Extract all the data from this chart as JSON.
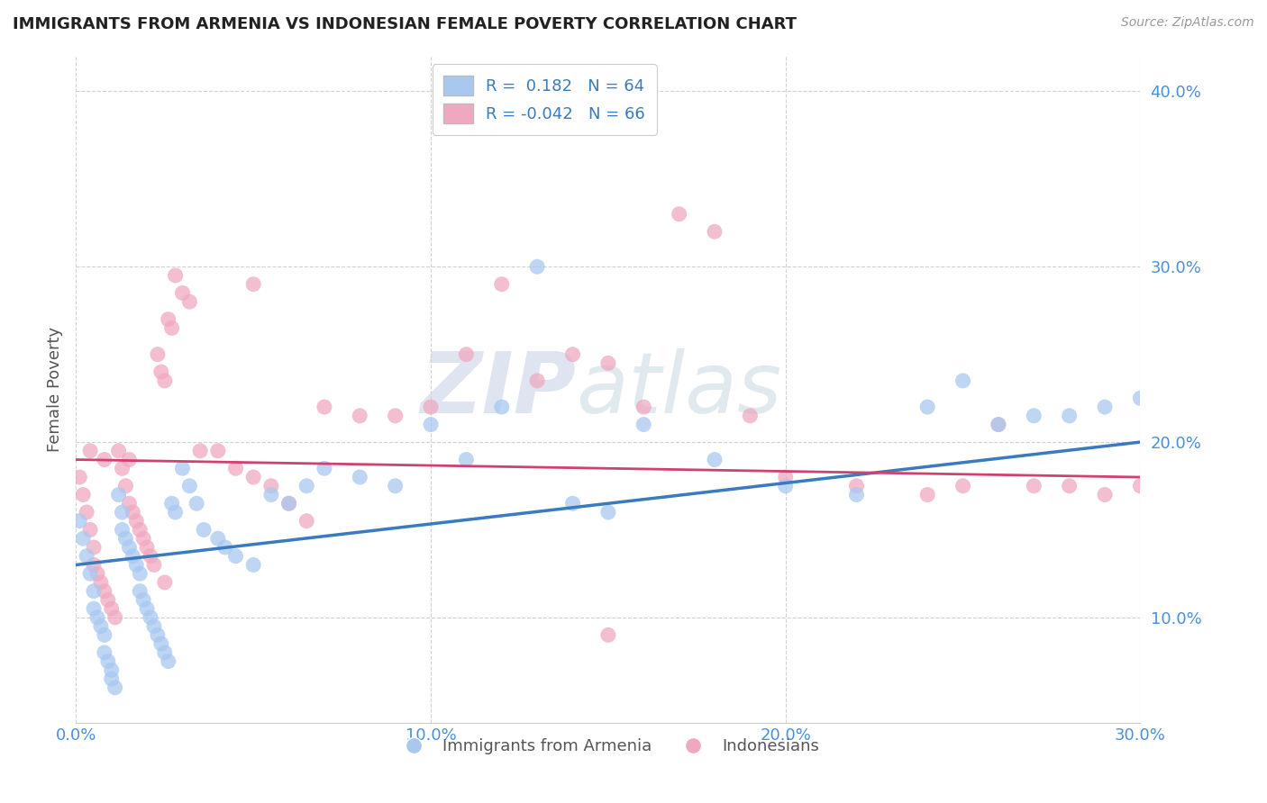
{
  "title": "IMMIGRANTS FROM ARMENIA VS INDONESIAN FEMALE POVERTY CORRELATION CHART",
  "source": "Source: ZipAtlas.com",
  "ylabel": "Female Poverty",
  "xlabel_blue": "Immigrants from Armenia",
  "xlabel_pink": "Indonesians",
  "xlim": [
    0.0,
    0.3
  ],
  "ylim": [
    0.04,
    0.42
  ],
  "xticks": [
    0.0,
    0.1,
    0.2,
    0.3
  ],
  "xtick_labels": [
    "0.0%",
    "10.0%",
    "20.0%",
    "30.0%"
  ],
  "yticks": [
    0.1,
    0.2,
    0.3,
    0.4
  ],
  "ytick_labels": [
    "10.0%",
    "20.0%",
    "30.0%",
    "40.0%"
  ],
  "blue_r": 0.182,
  "blue_n": 64,
  "pink_r": -0.042,
  "pink_n": 66,
  "blue_color": "#a8c8f0",
  "pink_color": "#f0a8c0",
  "blue_line_color": "#3a7abf",
  "pink_line_color": "#d04070",
  "watermark_zip": "ZIP",
  "watermark_atlas": "atlas",
  "blue_line_x": [
    0.0,
    0.3
  ],
  "blue_line_y": [
    0.13,
    0.2
  ],
  "pink_line_x": [
    0.0,
    0.3
  ],
  "pink_line_y": [
    0.19,
    0.18
  ],
  "blue_scatter_x": [
    0.001,
    0.002,
    0.003,
    0.004,
    0.005,
    0.005,
    0.006,
    0.007,
    0.008,
    0.008,
    0.009,
    0.01,
    0.01,
    0.011,
    0.012,
    0.013,
    0.013,
    0.014,
    0.015,
    0.016,
    0.017,
    0.018,
    0.018,
    0.019,
    0.02,
    0.021,
    0.022,
    0.023,
    0.024,
    0.025,
    0.026,
    0.027,
    0.028,
    0.03,
    0.032,
    0.034,
    0.036,
    0.04,
    0.042,
    0.045,
    0.05,
    0.055,
    0.06,
    0.065,
    0.07,
    0.08,
    0.09,
    0.1,
    0.11,
    0.12,
    0.13,
    0.14,
    0.15,
    0.16,
    0.18,
    0.2,
    0.22,
    0.24,
    0.25,
    0.26,
    0.27,
    0.28,
    0.29,
    0.3
  ],
  "blue_scatter_y": [
    0.155,
    0.145,
    0.135,
    0.125,
    0.115,
    0.105,
    0.1,
    0.095,
    0.09,
    0.08,
    0.075,
    0.07,
    0.065,
    0.06,
    0.17,
    0.16,
    0.15,
    0.145,
    0.14,
    0.135,
    0.13,
    0.125,
    0.115,
    0.11,
    0.105,
    0.1,
    0.095,
    0.09,
    0.085,
    0.08,
    0.075,
    0.165,
    0.16,
    0.185,
    0.175,
    0.165,
    0.15,
    0.145,
    0.14,
    0.135,
    0.13,
    0.17,
    0.165,
    0.175,
    0.185,
    0.18,
    0.175,
    0.21,
    0.19,
    0.22,
    0.3,
    0.165,
    0.16,
    0.21,
    0.19,
    0.175,
    0.17,
    0.22,
    0.235,
    0.21,
    0.215,
    0.215,
    0.22,
    0.225
  ],
  "pink_scatter_x": [
    0.001,
    0.002,
    0.003,
    0.004,
    0.005,
    0.005,
    0.006,
    0.007,
    0.008,
    0.009,
    0.01,
    0.011,
    0.012,
    0.013,
    0.014,
    0.015,
    0.016,
    0.017,
    0.018,
    0.019,
    0.02,
    0.021,
    0.022,
    0.023,
    0.024,
    0.025,
    0.026,
    0.027,
    0.028,
    0.03,
    0.032,
    0.035,
    0.04,
    0.045,
    0.05,
    0.055,
    0.06,
    0.065,
    0.07,
    0.08,
    0.09,
    0.1,
    0.11,
    0.12,
    0.13,
    0.14,
    0.15,
    0.16,
    0.17,
    0.18,
    0.19,
    0.2,
    0.22,
    0.24,
    0.25,
    0.26,
    0.27,
    0.28,
    0.29,
    0.3,
    0.004,
    0.008,
    0.015,
    0.025,
    0.05,
    0.15
  ],
  "pink_scatter_y": [
    0.18,
    0.17,
    0.16,
    0.15,
    0.14,
    0.13,
    0.125,
    0.12,
    0.115,
    0.11,
    0.105,
    0.1,
    0.195,
    0.185,
    0.175,
    0.165,
    0.16,
    0.155,
    0.15,
    0.145,
    0.14,
    0.135,
    0.13,
    0.25,
    0.24,
    0.235,
    0.27,
    0.265,
    0.295,
    0.285,
    0.28,
    0.195,
    0.195,
    0.185,
    0.18,
    0.175,
    0.165,
    0.155,
    0.22,
    0.215,
    0.215,
    0.22,
    0.25,
    0.29,
    0.235,
    0.25,
    0.245,
    0.22,
    0.33,
    0.32,
    0.215,
    0.18,
    0.175,
    0.17,
    0.175,
    0.21,
    0.175,
    0.175,
    0.17,
    0.175,
    0.195,
    0.19,
    0.19,
    0.12,
    0.29,
    0.09
  ]
}
